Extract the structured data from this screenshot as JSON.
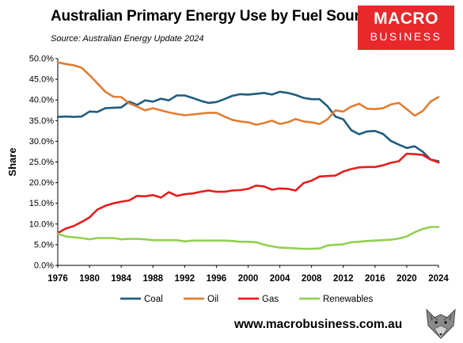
{
  "header": {
    "title": "Australian Primary Energy Use by Fuel Source",
    "subtitle": "Source: Australian Energy Update 2024"
  },
  "logo": {
    "line1": "MACRO",
    "line2": "BUSINESS",
    "color": "#e8282b"
  },
  "footer": {
    "url": "www.macrobusiness.com.au"
  },
  "chart_data": {
    "type": "line",
    "title": "Australian Primary Energy Use by Fuel Source",
    "xlabel": "",
    "ylabel": "Share",
    "xlim": [
      1976,
      2024
    ],
    "ylim": [
      0,
      50
    ],
    "x_ticks": [
      "1976",
      "1980",
      "1984",
      "1988",
      "1992",
      "1996",
      "2000",
      "2004",
      "2008",
      "2012",
      "2016",
      "2020",
      "2024"
    ],
    "y_ticks": [
      "0.0%",
      "5.0%",
      "10.0%",
      "15.0%",
      "20.0%",
      "25.0%",
      "30.0%",
      "35.0%",
      "40.0%",
      "45.0%",
      "50.0%"
    ],
    "grid": false,
    "legend_position": "bottom",
    "x": [
      1976,
      1977,
      1978,
      1979,
      1980,
      1981,
      1982,
      1983,
      1984,
      1985,
      1986,
      1987,
      1988,
      1989,
      1990,
      1991,
      1992,
      1993,
      1994,
      1995,
      1996,
      1997,
      1998,
      1999,
      2000,
      2001,
      2002,
      2003,
      2004,
      2005,
      2006,
      2007,
      2008,
      2009,
      2010,
      2011,
      2012,
      2013,
      2014,
      2015,
      2016,
      2017,
      2018,
      2019,
      2020,
      2021,
      2022,
      2023,
      2024
    ],
    "series": [
      {
        "name": "Coal",
        "color": "#1f5c7f",
        "values": [
          35.9,
          36.0,
          35.9,
          36.0,
          37.2,
          37.1,
          38.0,
          38.1,
          38.2,
          39.6,
          38.8,
          39.9,
          39.6,
          40.3,
          39.9,
          41.1,
          41.1,
          40.5,
          39.8,
          39.3,
          39.5,
          40.2,
          41.0,
          41.4,
          41.3,
          41.5,
          41.7,
          41.3,
          42.0,
          41.7,
          41.2,
          40.5,
          40.2,
          40.2,
          38.5,
          36.0,
          35.3,
          32.7,
          31.7,
          32.4,
          32.5,
          31.8,
          30.1,
          29.2,
          28.4,
          28.8,
          27.5,
          25.6,
          25.2
        ]
      },
      {
        "name": "Oil",
        "color": "#e27d33",
        "values": [
          49.1,
          48.7,
          48.4,
          47.8,
          46.0,
          44.0,
          42.0,
          40.8,
          40.7,
          39.2,
          38.4,
          37.5,
          38.0,
          37.5,
          37.0,
          36.6,
          36.3,
          36.5,
          36.7,
          36.9,
          36.9,
          36.0,
          35.2,
          34.8,
          34.6,
          34.0,
          34.4,
          35.0,
          34.2,
          34.6,
          35.4,
          34.8,
          34.6,
          34.2,
          35.3,
          37.5,
          37.2,
          38.4,
          39.1,
          37.9,
          37.8,
          38.0,
          38.9,
          39.3,
          37.8,
          36.2,
          37.3,
          39.6,
          40.7
        ]
      },
      {
        "name": "Gas",
        "color": "#e81c1c",
        "values": [
          7.8,
          8.9,
          9.5,
          10.5,
          11.6,
          13.5,
          14.4,
          15.0,
          15.4,
          15.7,
          16.8,
          16.7,
          17.0,
          16.4,
          17.7,
          16.8,
          17.2,
          17.4,
          17.8,
          18.1,
          17.8,
          17.8,
          18.1,
          18.2,
          18.5,
          19.3,
          19.1,
          18.3,
          18.6,
          18.5,
          18.1,
          19.9,
          20.5,
          21.5,
          21.6,
          21.7,
          22.7,
          23.3,
          23.7,
          23.8,
          23.8,
          24.2,
          24.8,
          25.2,
          27.0,
          26.9,
          26.7,
          25.6,
          24.9
        ]
      },
      {
        "name": "Renewables",
        "color": "#92d050",
        "values": [
          7.7,
          7.0,
          6.8,
          6.6,
          6.3,
          6.6,
          6.6,
          6.6,
          6.3,
          6.4,
          6.4,
          6.3,
          6.1,
          6.1,
          6.1,
          6.1,
          5.8,
          6.0,
          6.0,
          6.0,
          6.0,
          6.0,
          5.9,
          5.7,
          5.7,
          5.6,
          5.0,
          4.6,
          4.3,
          4.2,
          4.1,
          4.0,
          4.0,
          4.1,
          4.8,
          5.0,
          5.1,
          5.6,
          5.7,
          5.9,
          6.0,
          6.1,
          6.2,
          6.5,
          7.0,
          8.0,
          8.8,
          9.3,
          9.3
        ]
      }
    ]
  }
}
